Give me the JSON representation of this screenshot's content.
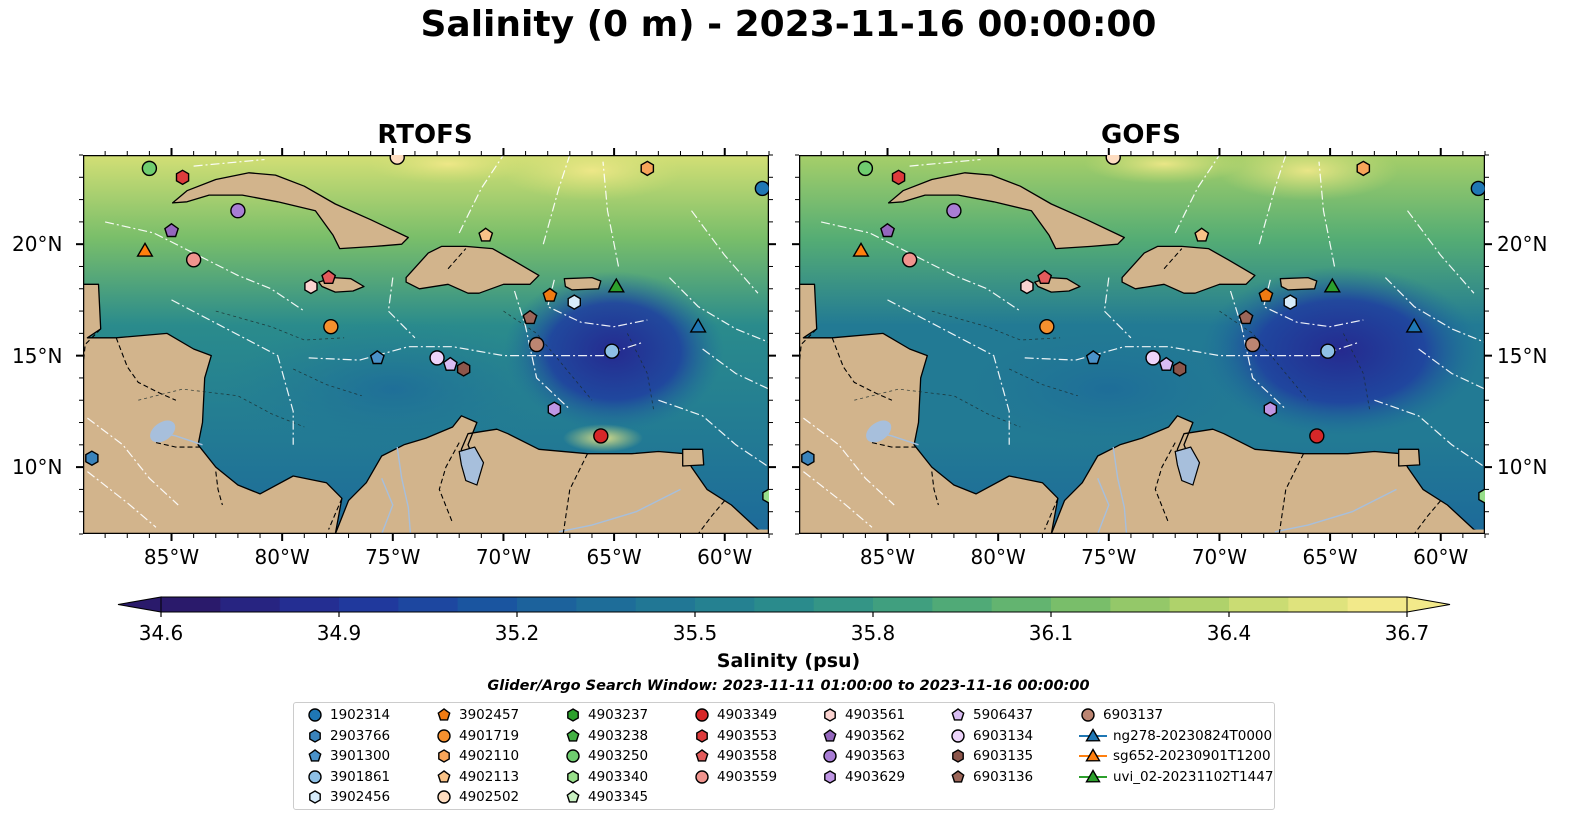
{
  "title": "Salinity (0 m) - 2023-11-16 00:00:00",
  "panels": [
    {
      "title": "RTOFS"
    },
    {
      "title": "GOFS"
    }
  ],
  "axes": {
    "lon_ticks": [
      "85°W",
      "80°W",
      "75°W",
      "70°W",
      "65°W",
      "60°W"
    ],
    "lon_values": [
      -85,
      -80,
      -75,
      -70,
      -65,
      -60
    ],
    "lat_ticks": [
      "20°N",
      "15°N",
      "10°N"
    ],
    "lat_values": [
      20,
      15,
      10
    ],
    "lon_range": [
      -89,
      -58
    ],
    "lat_range": [
      7,
      24
    ]
  },
  "colorbar": {
    "label": "Salinity (psu)",
    "ticks": [
      "34.6",
      "34.9",
      "35.2",
      "35.5",
      "35.8",
      "36.1",
      "36.4",
      "36.7"
    ],
    "range": [
      34.6,
      36.7
    ],
    "extend": "both",
    "colormap": [
      "#2a1a6b",
      "#252a8f",
      "#1f3da0",
      "#1a55a0",
      "#1d6a9a",
      "#227a94",
      "#2a8b8c",
      "#3b9c82",
      "#55ad74",
      "#79be6a",
      "#a6cf69",
      "#d3df75",
      "#f2e98a"
    ]
  },
  "search_window": "Glider/Argo Search Window: 2023-11-11 01:00:00 to 2023-11-16 00:00:00",
  "colors": {
    "land": "#d2b48c",
    "deep_fill": "#2a1a6b",
    "ocean_mid": "#3b9c82",
    "river": "#a7bfdc"
  },
  "legend": [
    {
      "label": "1902314",
      "marker": "circle",
      "color": "#1f77b4"
    },
    {
      "label": "2903766",
      "marker": "hexagon",
      "color": "#3a83bb"
    },
    {
      "label": "3901300",
      "marker": "pentagon",
      "color": "#4a92c9"
    },
    {
      "label": "3901861",
      "marker": "circle",
      "color": "#8ec0e6"
    },
    {
      "label": "3902456",
      "marker": "hexagon",
      "color": "#d6ebfa"
    },
    {
      "label": "3902457",
      "marker": "pentagon",
      "color": "#f07b12"
    },
    {
      "label": "4901719",
      "marker": "circle",
      "color": "#f5902e"
    },
    {
      "label": "4902110",
      "marker": "hexagon",
      "color": "#f7a55a"
    },
    {
      "label": "4902113",
      "marker": "pentagon",
      "color": "#f9c287"
    },
    {
      "label": "4902502",
      "marker": "circle",
      "color": "#fddcc0"
    },
    {
      "label": "4903237",
      "marker": "hexagon",
      "color": "#2ca02c"
    },
    {
      "label": "4903238",
      "marker": "pentagon",
      "color": "#44b044"
    },
    {
      "label": "4903250",
      "marker": "circle",
      "color": "#6fcd6f"
    },
    {
      "label": "4903340",
      "marker": "hexagon",
      "color": "#98df8a"
    },
    {
      "label": "4903345",
      "marker": "pentagon",
      "color": "#c9f1c2"
    },
    {
      "label": "4903349",
      "marker": "circle",
      "color": "#d62728"
    },
    {
      "label": "4903553",
      "marker": "hexagon",
      "color": "#dd3b3c"
    },
    {
      "label": "4903558",
      "marker": "pentagon",
      "color": "#e25b5b"
    },
    {
      "label": "4903559",
      "marker": "circle",
      "color": "#f0948e"
    },
    {
      "label": "4903561",
      "marker": "hexagon",
      "color": "#fbd3d0"
    },
    {
      "label": "4903562",
      "marker": "pentagon",
      "color": "#9467bd"
    },
    {
      "label": "4903563",
      "marker": "circle",
      "color": "#a87dd4"
    },
    {
      "label": "4903629",
      "marker": "hexagon",
      "color": "#bf96e4"
    },
    {
      "label": "5906437",
      "marker": "pentagon",
      "color": "#d9bdf3"
    },
    {
      "label": "6903134",
      "marker": "circle",
      "color": "#edd4fa"
    },
    {
      "label": "6903135",
      "marker": "hexagon",
      "color": "#8c564b"
    },
    {
      "label": "6903136",
      "marker": "pentagon",
      "color": "#9c6659"
    },
    {
      "label": "6903137",
      "marker": "circle",
      "color": "#bc8572"
    },
    {
      "label": "ng278-20230824T0000",
      "marker": "triangle-line",
      "color": "#1f77b4"
    },
    {
      "label": "sg652-20230901T1200",
      "marker": "triangle-line",
      "color": "#ff7f0e"
    },
    {
      "label": "uvi_02-20231102T1447",
      "marker": "triangle-line",
      "color": "#2ca02c"
    }
  ],
  "observations": [
    {
      "id": "1902314",
      "lon": -58.3,
      "lat": 22.5
    },
    {
      "id": "2903766",
      "lon": -88.6,
      "lat": 10.4
    },
    {
      "id": "3901300",
      "lon": -75.7,
      "lat": 14.9
    },
    {
      "id": "3901861",
      "lon": -65.1,
      "lat": 15.2
    },
    {
      "id": "3902456",
      "lon": -66.8,
      "lat": 17.4
    },
    {
      "id": "3902457",
      "lon": -67.9,
      "lat": 17.7
    },
    {
      "id": "4901719",
      "lon": -77.8,
      "lat": 16.3
    },
    {
      "id": "4902110",
      "lon": -63.5,
      "lat": 23.4
    },
    {
      "id": "4902113",
      "lon": -70.8,
      "lat": 20.4
    },
    {
      "id": "4902502",
      "lon": -74.8,
      "lat": 23.9
    },
    {
      "id": "4903250",
      "lon": -86.0,
      "lat": 23.4
    },
    {
      "id": "4903340",
      "lon": -58.0,
      "lat": 8.7
    },
    {
      "id": "4903349",
      "lon": -65.6,
      "lat": 11.4
    },
    {
      "id": "4903553",
      "lon": -84.5,
      "lat": 23.0
    },
    {
      "id": "4903558",
      "lon": -77.9,
      "lat": 18.5
    },
    {
      "id": "4903559",
      "lon": -84.0,
      "lat": 19.3
    },
    {
      "id": "4903561",
      "lon": -78.7,
      "lat": 18.1
    },
    {
      "id": "4903562",
      "lon": -85.0,
      "lat": 20.6
    },
    {
      "id": "4903563",
      "lon": -82.0,
      "lat": 21.5
    },
    {
      "id": "4903629",
      "lon": -67.7,
      "lat": 12.6
    },
    {
      "id": "6903134",
      "lon": -73.0,
      "lat": 14.9
    },
    {
      "id": "6903135",
      "lon": -71.8,
      "lat": 14.4
    },
    {
      "id": "6903136",
      "lon": -68.8,
      "lat": 16.7
    },
    {
      "id": "6903137",
      "lon": -68.5,
      "lat": 15.5
    },
    {
      "id": "5906437",
      "lon": -72.4,
      "lat": 14.6
    },
    {
      "id": "ng278-20230824T0000",
      "lon": -61.2,
      "lat": 16.3
    },
    {
      "id": "sg652-20230901T1200",
      "lon": -86.2,
      "lat": 19.7
    },
    {
      "id": "uvi_02-20231102T1447",
      "lon": -64.9,
      "lat": 18.1
    }
  ]
}
